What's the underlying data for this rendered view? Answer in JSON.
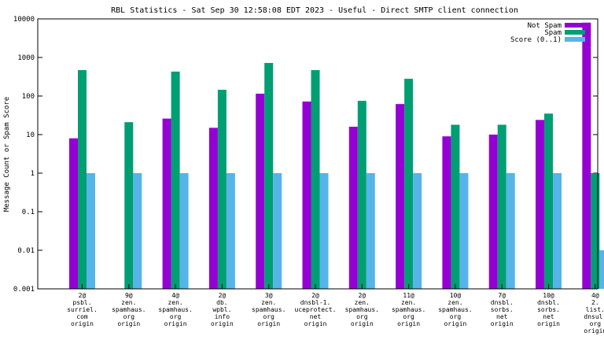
{
  "chart_data": {
    "type": "bar",
    "title": "RBL Statistics - Sat Sep 30 12:58:08 EDT 2023 - Useful - Direct SMTP client connection",
    "ylabel": "Message Count or Spam Score",
    "xlabel": "",
    "yscale": "log",
    "ylim": [
      0.001,
      10000
    ],
    "yticks": [
      "0.001",
      "0.01",
      "0.1",
      "1",
      "10",
      "100",
      "1000",
      "10000"
    ],
    "grid": false,
    "legend_position": "top-right",
    "categories": [
      [
        "2@",
        "psbl.",
        "surriel.",
        "com",
        "origin"
      ],
      [
        "9@",
        "zen.",
        "spamhaus.",
        "org",
        "origin"
      ],
      [
        "4@",
        "zen.",
        "spamhaus.",
        "org",
        "origin"
      ],
      [
        "2@",
        "db.",
        "wpbl.",
        "info",
        "origin"
      ],
      [
        "3@",
        "zen.",
        "spamhaus.",
        "org",
        "origin"
      ],
      [
        "2@",
        "dnsbl-1.",
        "uceprotect.",
        "net",
        "origin"
      ],
      [
        "2@",
        "zen.",
        "spamhaus.",
        "org",
        "origin"
      ],
      [
        "11@",
        "zen.",
        "spamhaus.",
        "org",
        "origin"
      ],
      [
        "10@",
        "zen.",
        "spamhaus.",
        "org",
        "origin"
      ],
      [
        "7@",
        "dnsbl.",
        "sorbs.",
        "net",
        "origin"
      ],
      [
        "10@",
        "dnsbl.",
        "sorbs.",
        "net",
        "origin"
      ],
      [
        "4@",
        "2.",
        "list.",
        "dnsul.",
        "org",
        "origin"
      ]
    ],
    "series": [
      {
        "name": "Not Spam",
        "color": "#9400d3",
        "values": [
          8,
          0,
          26,
          15,
          115,
          72,
          16,
          62,
          9,
          10,
          24,
          8000
        ]
      },
      {
        "name": "Spam",
        "color": "#009e73",
        "values": [
          470,
          21,
          430,
          145,
          720,
          470,
          75,
          280,
          18,
          18,
          35,
          1
        ]
      },
      {
        "name": "Score (0..1)",
        "color": "#56b4e9",
        "values": [
          1,
          1,
          1,
          1,
          1,
          1,
          1,
          1,
          1,
          1,
          1,
          0.01
        ]
      }
    ]
  }
}
